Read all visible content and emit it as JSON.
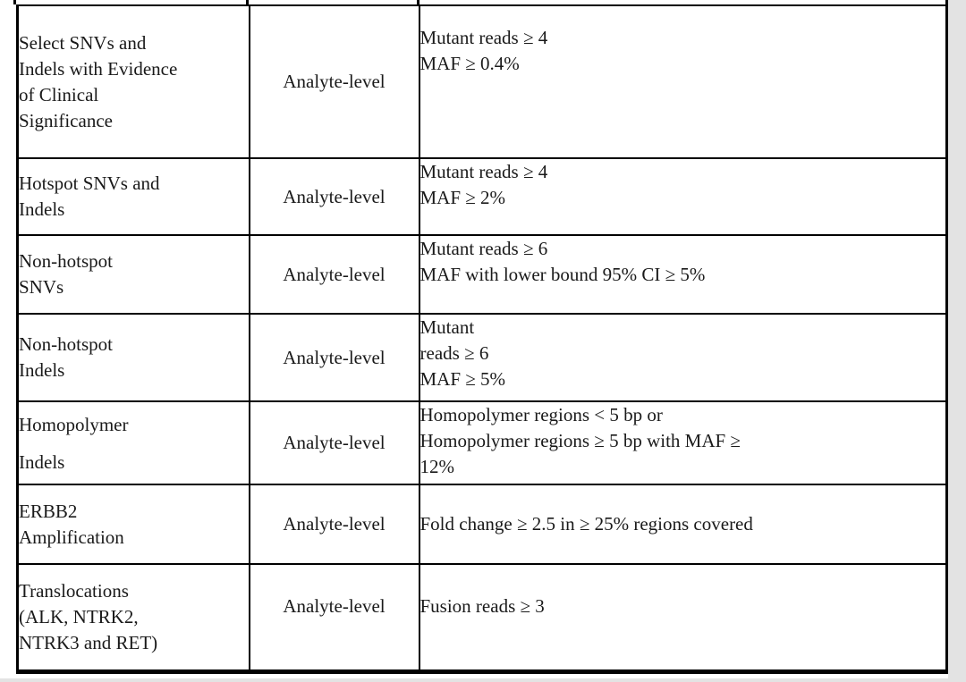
{
  "colors": {
    "border": "#000000",
    "text": "#1a1a1a",
    "background": "#ffffff",
    "scan_edge": "#e3e3e3"
  },
  "table": {
    "rows": [
      {
        "variant_type": "Select SNVs and Indels with Evidence of Clinical Significance",
        "type_lines": [
          "Select SNVs and",
          "Indels with Evidence",
          "of Clinical",
          "Significance"
        ],
        "level": "Analyte-level",
        "criteria_lines": [
          "Mutant reads ≥ 4",
          "MAF ≥ 0.4%"
        ]
      },
      {
        "variant_type": "Hotspot SNVs and Indels",
        "type_lines": [
          "Hotspot SNVs and",
          "Indels"
        ],
        "level": "Analyte-level",
        "criteria_lines": [
          "Mutant reads ≥ 4",
          "MAF ≥ 2%"
        ]
      },
      {
        "variant_type": "Non-hotspot SNVs",
        "type_lines": [
          "Non-hotspot",
          "SNVs"
        ],
        "level": "Analyte-level",
        "criteria_lines": [
          "Mutant reads ≥ 6",
          "MAF with lower bound 95% CI ≥ 5%"
        ]
      },
      {
        "variant_type": "Non-hotspot Indels",
        "type_lines": [
          "Non-hotspot",
          "Indels"
        ],
        "level": "Analyte-level",
        "criteria_lines": [
          "Mutant",
          "reads ≥ 6",
          "MAF ≥ 5%"
        ]
      },
      {
        "variant_type": "Homopolymer Indels",
        "type_lines": [
          "Homopolymer",
          "Indels"
        ],
        "level": "Analyte-level",
        "criteria_lines": [
          "Homopolymer regions < 5 bp or",
          "Homopolymer regions ≥ 5 bp with MAF ≥",
          "12%"
        ]
      },
      {
        "variant_type": "ERBB2 Amplification",
        "type_lines": [
          "ERBB2",
          "Amplification"
        ],
        "level": "Analyte-level",
        "criteria_lines": [
          "Fold change ≥ 2.5 in ≥ 25% regions covered"
        ]
      },
      {
        "variant_type": "Translocations (ALK, NTRK2, NTRK3 and RET)",
        "type_lines": [
          "Translocations",
          "(ALK, NTRK2,",
          "NTRK3 and RET)"
        ],
        "level": "Analyte-level",
        "criteria_lines": [
          "Fusion reads ≥ 3"
        ]
      }
    ]
  }
}
